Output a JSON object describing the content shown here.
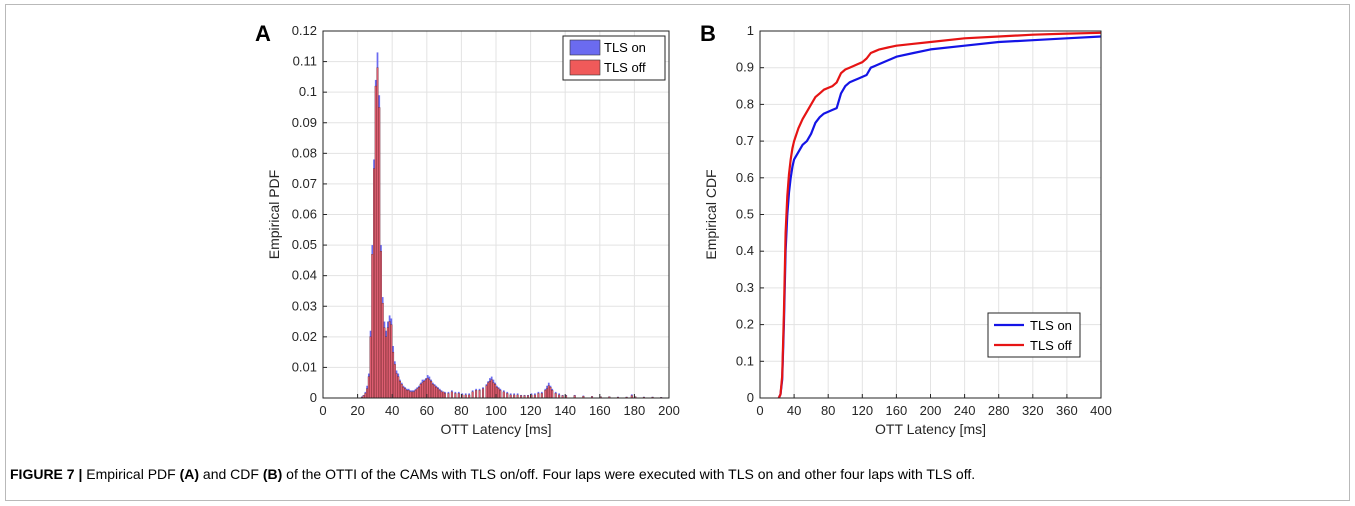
{
  "caption": {
    "prefix": "FIGURE 7 |",
    "t1": " Empirical PDF ",
    "a": "(A)",
    "t2": " and CDF ",
    "b": "(B)",
    "t3": " of the OTTI of the CAMs with TLS on/off. Four laps were executed with TLS on and other four laps with TLS off."
  },
  "chart_data": [
    {
      "panel": "A",
      "type": "bar",
      "xlabel": "OTT Latency [ms]",
      "ylabel": "Empirical PDF",
      "xlim": [
        0,
        200
      ],
      "ylim": [
        0,
        0.12
      ],
      "xticks": [
        0,
        20,
        40,
        60,
        80,
        100,
        120,
        140,
        160,
        180,
        200
      ],
      "yticks": [
        0,
        0.01,
        0.02,
        0.03,
        0.04,
        0.05,
        0.06,
        0.07,
        0.08,
        0.09,
        0.1,
        0.11,
        0.12
      ],
      "xtick_labels": [
        "0",
        "20",
        "40",
        "60",
        "80",
        "100",
        "120",
        "140",
        "160",
        "180",
        "200"
      ],
      "ytick_labels": [
        "0",
        "0.01",
        "0.02",
        "0.03",
        "0.04",
        "0.05",
        "0.06",
        "0.07",
        "0.08",
        "0.09",
        "0.1",
        "0.11",
        "0.12"
      ],
      "grid": true,
      "legend_position": "top-right",
      "bin_width": 1,
      "x": [
        22,
        23,
        24,
        25,
        26,
        27,
        28,
        29,
        30,
        31,
        32,
        33,
        34,
        35,
        36,
        37,
        38,
        39,
        40,
        41,
        42,
        43,
        44,
        45,
        46,
        47,
        48,
        49,
        50,
        51,
        52,
        53,
        54,
        55,
        56,
        57,
        58,
        59,
        60,
        61,
        62,
        63,
        64,
        65,
        66,
        67,
        68,
        69,
        70,
        72,
        74,
        76,
        78,
        80,
        82,
        84,
        86,
        88,
        90,
        92,
        94,
        95,
        96,
        97,
        98,
        99,
        100,
        101,
        102,
        104,
        106,
        108,
        110,
        112,
        114,
        116,
        118,
        120,
        122,
        124,
        126,
        128,
        129,
        130,
        131,
        132,
        134,
        136,
        138,
        140,
        145,
        150,
        155,
        160,
        165,
        170,
        175,
        178,
        180,
        185,
        190,
        195
      ],
      "series": [
        {
          "name": "TLS on",
          "color": "#6b6bf0",
          "values": [
            0.0005,
            0.001,
            0.002,
            0.004,
            0.008,
            0.022,
            0.05,
            0.078,
            0.104,
            0.113,
            0.099,
            0.05,
            0.033,
            0.025,
            0.022,
            0.025,
            0.027,
            0.026,
            0.017,
            0.012,
            0.009,
            0.008,
            0.006,
            0.005,
            0.004,
            0.0035,
            0.003,
            0.003,
            0.0025,
            0.0025,
            0.0025,
            0.003,
            0.0035,
            0.004,
            0.005,
            0.006,
            0.006,
            0.0065,
            0.0075,
            0.007,
            0.006,
            0.005,
            0.0045,
            0.004,
            0.0035,
            0.003,
            0.0025,
            0.002,
            0.002,
            0.002,
            0.0025,
            0.002,
            0.002,
            0.0015,
            0.0015,
            0.0015,
            0.0025,
            0.003,
            0.003,
            0.0035,
            0.0045,
            0.0055,
            0.0065,
            0.007,
            0.006,
            0.005,
            0.004,
            0.0035,
            0.003,
            0.0025,
            0.002,
            0.0015,
            0.0015,
            0.0015,
            0.001,
            0.001,
            0.001,
            0.0015,
            0.0015,
            0.002,
            0.002,
            0.003,
            0.004,
            0.005,
            0.004,
            0.003,
            0.002,
            0.0015,
            0.001,
            0.001,
            0.001,
            0.0008,
            0.0006,
            0.0005,
            0.0005,
            0.0004,
            0.0004,
            0.0012,
            0.0005,
            0.0004,
            0.0004,
            0.0003
          ]
        },
        {
          "name": "TLS off",
          "color": "#f05a5a",
          "values": [
            0.0003,
            0.0008,
            0.0015,
            0.003,
            0.007,
            0.02,
            0.047,
            0.075,
            0.102,
            0.108,
            0.095,
            0.048,
            0.031,
            0.023,
            0.02,
            0.023,
            0.025,
            0.024,
            0.015,
            0.011,
            0.008,
            0.007,
            0.0055,
            0.0045,
            0.0035,
            0.003,
            0.0025,
            0.0025,
            0.002,
            0.002,
            0.002,
            0.0025,
            0.003,
            0.0035,
            0.0045,
            0.005,
            0.0055,
            0.006,
            0.0065,
            0.006,
            0.0055,
            0.0045,
            0.004,
            0.0035,
            0.003,
            0.0025,
            0.002,
            0.002,
            0.0015,
            0.0015,
            0.002,
            0.0015,
            0.0015,
            0.001,
            0.001,
            0.001,
            0.002,
            0.0025,
            0.0025,
            0.003,
            0.004,
            0.005,
            0.0055,
            0.006,
            0.005,
            0.0045,
            0.0035,
            0.003,
            0.0025,
            0.002,
            0.0015,
            0.001,
            0.001,
            0.001,
            0.0008,
            0.0008,
            0.0008,
            0.001,
            0.001,
            0.0015,
            0.0015,
            0.0025,
            0.003,
            0.004,
            0.0035,
            0.0025,
            0.0015,
            0.001,
            0.0008,
            0.0008,
            0.0008,
            0.0006,
            0.0005,
            0.0004,
            0.0004,
            0.0003,
            0.0003,
            0.0008,
            0.0004,
            0.0003,
            0.0003,
            0.0002
          ]
        }
      ]
    },
    {
      "panel": "B",
      "type": "line",
      "xlabel": "OTT Latency [ms]",
      "ylabel": "Empirical CDF",
      "xlim": [
        0,
        400
      ],
      "ylim": [
        0,
        1
      ],
      "xticks": [
        0,
        40,
        80,
        120,
        160,
        200,
        240,
        280,
        320,
        360,
        400
      ],
      "yticks": [
        0,
        0.1,
        0.2,
        0.3,
        0.4,
        0.5,
        0.6,
        0.7,
        0.8,
        0.9,
        1
      ],
      "xtick_labels": [
        "0",
        "40",
        "80",
        "120",
        "160",
        "200",
        "240",
        "280",
        "320",
        "360",
        "400"
      ],
      "ytick_labels": [
        "0",
        "0.1",
        "0.2",
        "0.3",
        "0.4",
        "0.5",
        "0.6",
        "0.7",
        "0.8",
        "0.9",
        "1"
      ],
      "grid": true,
      "legend_position": "bottom-right",
      "series": [
        {
          "name": "TLS on",
          "color": "#1414e6",
          "x": [
            22,
            24,
            26,
            28,
            30,
            32,
            34,
            36,
            38,
            40,
            45,
            50,
            55,
            60,
            65,
            70,
            75,
            80,
            85,
            90,
            95,
            100,
            105,
            110,
            115,
            120,
            125,
            130,
            135,
            140,
            150,
            160,
            180,
            200,
            240,
            280,
            320,
            360,
            400
          ],
          "y": [
            0,
            0.01,
            0.05,
            0.2,
            0.4,
            0.5,
            0.56,
            0.6,
            0.63,
            0.65,
            0.67,
            0.69,
            0.7,
            0.72,
            0.75,
            0.765,
            0.775,
            0.78,
            0.785,
            0.79,
            0.83,
            0.85,
            0.86,
            0.865,
            0.87,
            0.875,
            0.88,
            0.9,
            0.905,
            0.91,
            0.92,
            0.93,
            0.94,
            0.95,
            0.96,
            0.97,
            0.975,
            0.98,
            0.985
          ]
        },
        {
          "name": "TLS off",
          "color": "#e61414",
          "x": [
            22,
            24,
            26,
            28,
            30,
            32,
            34,
            36,
            38,
            40,
            45,
            50,
            55,
            60,
            65,
            70,
            75,
            80,
            85,
            90,
            95,
            100,
            105,
            110,
            115,
            120,
            125,
            130,
            135,
            140,
            150,
            160,
            180,
            200,
            240,
            280,
            320,
            360,
            400
          ],
          "y": [
            0,
            0.01,
            0.06,
            0.23,
            0.45,
            0.55,
            0.61,
            0.65,
            0.68,
            0.7,
            0.735,
            0.76,
            0.78,
            0.8,
            0.82,
            0.83,
            0.84,
            0.845,
            0.85,
            0.86,
            0.885,
            0.895,
            0.9,
            0.905,
            0.91,
            0.915,
            0.925,
            0.94,
            0.945,
            0.95,
            0.955,
            0.96,
            0.965,
            0.97,
            0.98,
            0.985,
            0.99,
            0.993,
            0.995
          ]
        }
      ]
    }
  ]
}
